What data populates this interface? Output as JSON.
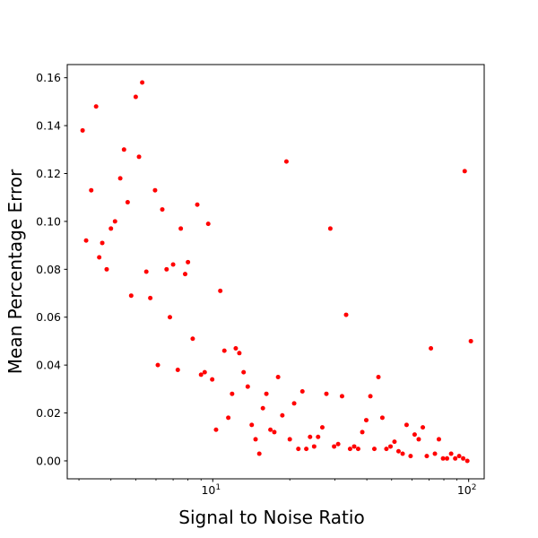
{
  "chart_data": {
    "type": "scatter",
    "title": "",
    "xlabel": "Signal to Noise Ratio",
    "ylabel": "Mean Percentage Error",
    "xscale": "log",
    "xlim": [
      2.7,
      115
    ],
    "ylim": [
      -0.0075,
      0.1655
    ],
    "grid": false,
    "legend": "none",
    "x_tick_labels": [
      {
        "value": 10,
        "base": "10",
        "exp": "1"
      },
      {
        "value": 100,
        "base": "10",
        "exp": "2"
      }
    ],
    "x_minor_ticks": [
      3,
      4,
      5,
      6,
      7,
      8,
      9,
      20,
      30,
      40,
      50,
      60,
      70,
      80,
      90
    ],
    "y_ticks": [
      0.0,
      0.02,
      0.04,
      0.06,
      0.08,
      0.1,
      0.12,
      0.14,
      0.16
    ],
    "y_tick_labels": [
      "0.00",
      "0.02",
      "0.04",
      "0.06",
      "0.08",
      "0.10",
      "0.12",
      "0.14",
      "0.16"
    ],
    "series": [
      {
        "color": "#ff0000",
        "marker": "circle",
        "points": [
          [
            3.1,
            0.138
          ],
          [
            3.2,
            0.092
          ],
          [
            3.35,
            0.113
          ],
          [
            3.5,
            0.148
          ],
          [
            3.6,
            0.085
          ],
          [
            3.7,
            0.091
          ],
          [
            3.85,
            0.08
          ],
          [
            4.0,
            0.097
          ],
          [
            4.15,
            0.1
          ],
          [
            4.35,
            0.118
          ],
          [
            4.5,
            0.13
          ],
          [
            4.65,
            0.108
          ],
          [
            4.8,
            0.069
          ],
          [
            5.0,
            0.152
          ],
          [
            5.15,
            0.127
          ],
          [
            5.3,
            0.158
          ],
          [
            5.5,
            0.079
          ],
          [
            5.7,
            0.068
          ],
          [
            5.95,
            0.113
          ],
          [
            6.1,
            0.04
          ],
          [
            6.35,
            0.105
          ],
          [
            6.6,
            0.08
          ],
          [
            6.8,
            0.06
          ],
          [
            7.0,
            0.082
          ],
          [
            7.3,
            0.038
          ],
          [
            7.5,
            0.097
          ],
          [
            7.8,
            0.078
          ],
          [
            8.0,
            0.083
          ],
          [
            8.35,
            0.051
          ],
          [
            8.7,
            0.107
          ],
          [
            9.0,
            0.036
          ],
          [
            9.3,
            0.037
          ],
          [
            9.6,
            0.099
          ],
          [
            9.95,
            0.034
          ],
          [
            10.3,
            0.013
          ],
          [
            10.7,
            0.071
          ],
          [
            11.1,
            0.046
          ],
          [
            11.5,
            0.018
          ],
          [
            11.9,
            0.028
          ],
          [
            12.3,
            0.047
          ],
          [
            12.7,
            0.045
          ],
          [
            13.2,
            0.037
          ],
          [
            13.7,
            0.031
          ],
          [
            14.2,
            0.015
          ],
          [
            14.7,
            0.009
          ],
          [
            15.2,
            0.003
          ],
          [
            15.7,
            0.022
          ],
          [
            16.2,
            0.028
          ],
          [
            16.8,
            0.013
          ],
          [
            17.4,
            0.012
          ],
          [
            18.0,
            0.035
          ],
          [
            18.7,
            0.019
          ],
          [
            19.4,
            0.125
          ],
          [
            20.0,
            0.009
          ],
          [
            20.8,
            0.024
          ],
          [
            21.6,
            0.005
          ],
          [
            22.4,
            0.029
          ],
          [
            23.2,
            0.005
          ],
          [
            24.0,
            0.01
          ],
          [
            24.9,
            0.006
          ],
          [
            25.8,
            0.01
          ],
          [
            26.8,
            0.014
          ],
          [
            27.8,
            0.028
          ],
          [
            28.8,
            0.097
          ],
          [
            29.8,
            0.006
          ],
          [
            30.9,
            0.007
          ],
          [
            32.0,
            0.027
          ],
          [
            33.2,
            0.061
          ],
          [
            34.4,
            0.005
          ],
          [
            35.7,
            0.006
          ],
          [
            37.0,
            0.005
          ],
          [
            38.4,
            0.012
          ],
          [
            39.8,
            0.017
          ],
          [
            41.3,
            0.027
          ],
          [
            42.8,
            0.005
          ],
          [
            44.4,
            0.035
          ],
          [
            46.0,
            0.018
          ],
          [
            47.7,
            0.005
          ],
          [
            49.5,
            0.006
          ],
          [
            51.3,
            0.008
          ],
          [
            53.2,
            0.004
          ],
          [
            55.2,
            0.003
          ],
          [
            57.2,
            0.015
          ],
          [
            59.3,
            0.002
          ],
          [
            61.5,
            0.011
          ],
          [
            63.8,
            0.009
          ],
          [
            66.2,
            0.014
          ],
          [
            68.6,
            0.002
          ],
          [
            71.2,
            0.047
          ],
          [
            73.8,
            0.003
          ],
          [
            76.5,
            0.009
          ],
          [
            79.4,
            0.001
          ],
          [
            82.3,
            0.001
          ],
          [
            85.4,
            0.003
          ],
          [
            88.6,
            0.001
          ],
          [
            91.8,
            0.002
          ],
          [
            95.2,
            0.001
          ],
          [
            96.5,
            0.121
          ],
          [
            98.8,
            0.0
          ],
          [
            102.0,
            0.05
          ]
        ]
      }
    ]
  }
}
